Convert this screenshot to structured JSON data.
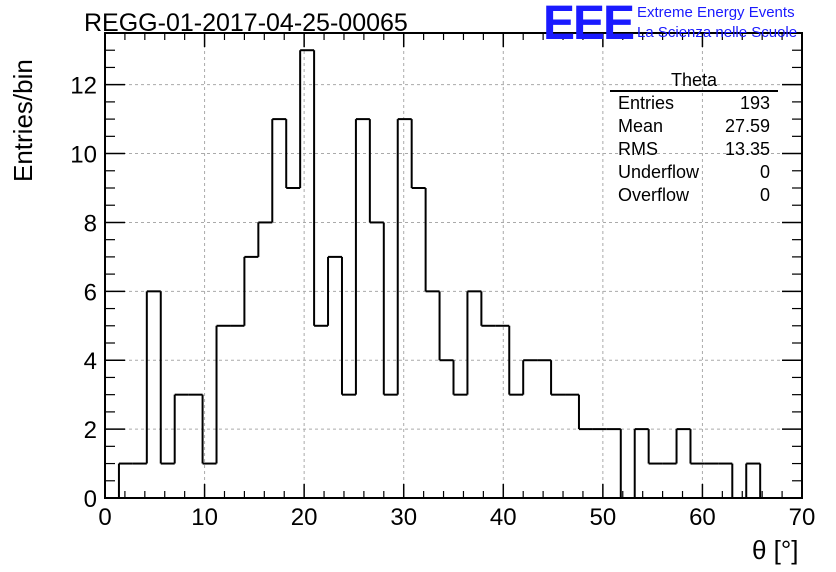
{
  "header": {
    "run_title": "REGG-01-2017-04-25-00065"
  },
  "logo": {
    "mark": "EEE",
    "line1": "Extreme Energy Events",
    "line2": "La Scienza nelle Scuole"
  },
  "stats_box": {
    "title": "Theta",
    "rows": [
      {
        "label": "Entries",
        "value": "193"
      },
      {
        "label": "Mean",
        "value": "27.59"
      },
      {
        "label": "RMS",
        "value": "13.35"
      },
      {
        "label": "Underflow",
        "value": "0"
      },
      {
        "label": "Overflow",
        "value": "0"
      }
    ]
  },
  "colors": {
    "histogram_line": "#000000",
    "grid": "#aaaaaa",
    "logo": "#1a1aff"
  },
  "chart_data": {
    "type": "bar",
    "style": "step-histogram",
    "title": "REGG-01-2017-04-25-00065",
    "xlabel": "θ [°]",
    "ylabel": "Entries/bin",
    "xlim": [
      0,
      70
    ],
    "ylim": [
      0,
      13.5
    ],
    "grid": true,
    "legend": "none",
    "x_ticks": [
      "0",
      "10",
      "20",
      "30",
      "40",
      "50",
      "60",
      "70"
    ],
    "y_ticks": [
      "0",
      "2",
      "4",
      "6",
      "8",
      "10",
      "12"
    ],
    "bin_edges": [
      1.4,
      2.8,
      4.2,
      5.6,
      7.0,
      8.4,
      9.8,
      11.2,
      12.6,
      14.0,
      15.4,
      16.8,
      18.2,
      19.6,
      21.0,
      22.4,
      23.8,
      25.2,
      26.6,
      28.0,
      29.4,
      30.8,
      32.2,
      33.6,
      35.0,
      36.4,
      37.8,
      39.2,
      40.6,
      42.0,
      43.4,
      44.8,
      46.2,
      47.6,
      49.0,
      50.4,
      51.8,
      53.2,
      54.6,
      56.0,
      57.4,
      58.8,
      60.2,
      61.6,
      63.0,
      64.4,
      65.8
    ],
    "values": [
      1,
      1,
      6,
      1,
      3,
      3,
      1,
      5,
      5,
      7,
      8,
      11,
      9,
      13,
      5,
      7,
      3,
      11,
      8,
      3,
      11,
      9,
      6,
      4,
      3,
      6,
      5,
      5,
      3,
      4,
      4,
      3,
      3,
      2,
      2,
      2,
      0,
      2,
      1,
      1,
      2,
      1,
      1,
      1,
      0,
      1
    ]
  }
}
